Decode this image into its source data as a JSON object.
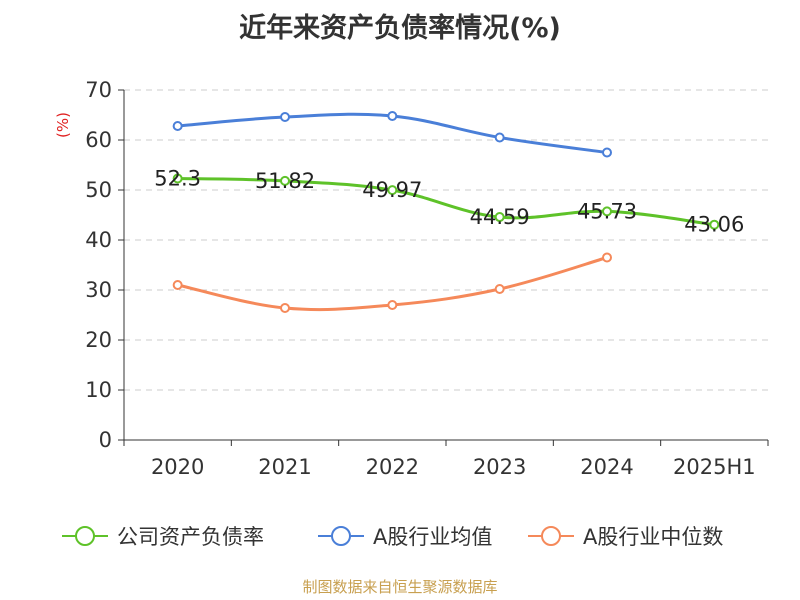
{
  "title": "近年来资产负债率情况(%)",
  "source": "制图数据来自恒生聚源数据库",
  "chart_data": {
    "type": "line",
    "title": "近年来资产负债率情况(%)",
    "ylabel": "(%)",
    "xlabel": "",
    "ylim": [
      0,
      70
    ],
    "yticks": [
      0,
      10,
      20,
      30,
      40,
      50,
      60,
      70
    ],
    "categories": [
      "2020",
      "2021",
      "2022",
      "2023",
      "2024",
      "2025H1"
    ],
    "grid": true,
    "legend_position": "bottom",
    "series": [
      {
        "name": "公司资产负债率",
        "color": "#5ec229",
        "values": [
          52.3,
          51.82,
          49.97,
          44.59,
          45.73,
          43.06
        ],
        "labels": [
          "52.3",
          "51.82",
          "49.97",
          "44.59",
          "45.73",
          "43.06"
        ],
        "show_labels": true
      },
      {
        "name": "A股行业均值",
        "color": "#4a7fd8",
        "values": [
          62.8,
          64.6,
          64.8,
          60.5,
          57.5,
          null
        ],
        "show_labels": false
      },
      {
        "name": "A股行业中位数",
        "color": "#f5895a",
        "values": [
          31.0,
          26.4,
          27.0,
          30.2,
          36.5,
          null
        ],
        "show_labels": false
      }
    ]
  }
}
